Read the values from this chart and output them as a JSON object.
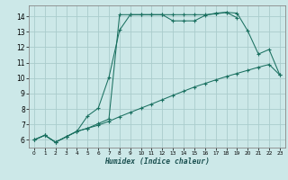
{
  "xlabel": "Humidex (Indice chaleur)",
  "bg_color": "#cce8e8",
  "grid_color": "#aacccc",
  "line_color": "#1a7060",
  "xlim": [
    -0.5,
    23.5
  ],
  "ylim": [
    5.5,
    14.7
  ],
  "yticks": [
    6,
    7,
    8,
    9,
    10,
    11,
    12,
    13,
    14
  ],
  "xticks": [
    0,
    1,
    2,
    3,
    4,
    5,
    6,
    7,
    8,
    9,
    10,
    11,
    12,
    13,
    14,
    15,
    16,
    17,
    18,
    19,
    20,
    21,
    22,
    23
  ],
  "line1_x": [
    0,
    1,
    2,
    3,
    4,
    5,
    6,
    7,
    8,
    9,
    10,
    11,
    12,
    13,
    14,
    15,
    16,
    17,
    18,
    19
  ],
  "line1_y": [
    6.0,
    6.3,
    5.85,
    6.2,
    6.55,
    6.75,
    7.05,
    7.35,
    14.1,
    14.1,
    14.1,
    14.1,
    14.1,
    13.7,
    13.7,
    13.7,
    14.05,
    14.2,
    14.25,
    13.9
  ],
  "line2_x": [
    0,
    1,
    2,
    3,
    4,
    5,
    6,
    7,
    8,
    9,
    10,
    11,
    12,
    13,
    14,
    15,
    16,
    17,
    18,
    19,
    20,
    21,
    22,
    23
  ],
  "line2_y": [
    6.0,
    6.3,
    5.85,
    6.2,
    6.55,
    7.55,
    8.05,
    10.05,
    13.1,
    14.1,
    14.1,
    14.1,
    14.1,
    14.1,
    14.1,
    14.1,
    14.1,
    14.15,
    14.25,
    14.2,
    13.05,
    11.55,
    11.85,
    10.2
  ],
  "line3_x": [
    0,
    1,
    2,
    3,
    4,
    5,
    6,
    7,
    8,
    9,
    10,
    11,
    12,
    13,
    14,
    15,
    16,
    17,
    18,
    19,
    20,
    21,
    22,
    23
  ],
  "line3_y": [
    6.0,
    6.3,
    5.85,
    6.2,
    6.55,
    6.75,
    6.95,
    7.2,
    7.5,
    7.78,
    8.05,
    8.32,
    8.6,
    8.88,
    9.15,
    9.42,
    9.65,
    9.88,
    10.1,
    10.3,
    10.5,
    10.7,
    10.88,
    10.2
  ]
}
